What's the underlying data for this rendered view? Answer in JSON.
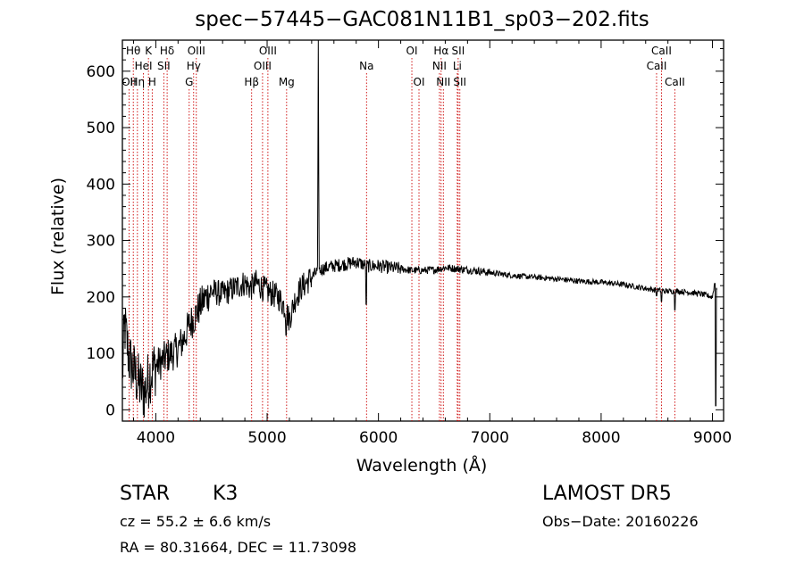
{
  "chart_data": {
    "type": "line",
    "title": "spec−57445−GAC081N11B1_sp03−202.fits",
    "xlabel": "Wavelength (Å)",
    "ylabel": "Flux (relative)",
    "xlim": [
      3700,
      9100
    ],
    "ylim": [
      -20,
      655
    ],
    "xticks": [
      4000,
      5000,
      6000,
      7000,
      8000,
      9000
    ],
    "yticks": [
      0,
      100,
      200,
      300,
      400,
      500,
      600
    ],
    "grid": false,
    "line_color": "#000000",
    "marker_color": "#cc0000",
    "spectrum_anchors": [
      [
        3700,
        60
      ],
      [
        3720,
        150
      ],
      [
        3760,
        90
      ],
      [
        3800,
        70
      ],
      [
        3850,
        45
      ],
      [
        3900,
        30
      ],
      [
        3950,
        65
      ],
      [
        4000,
        78
      ],
      [
        4050,
        85
      ],
      [
        4100,
        95
      ],
      [
        4150,
        100
      ],
      [
        4200,
        108
      ],
      [
        4250,
        125
      ],
      [
        4300,
        150
      ],
      [
        4350,
        165
      ],
      [
        4400,
        185
      ],
      [
        4450,
        200
      ],
      [
        4500,
        210
      ],
      [
        4600,
        205
      ],
      [
        4700,
        215
      ],
      [
        4800,
        225
      ],
      [
        4850,
        215
      ],
      [
        4900,
        225
      ],
      [
        5000,
        210
      ],
      [
        5100,
        200
      ],
      [
        5150,
        185
      ],
      [
        5200,
        160
      ],
      [
        5250,
        195
      ],
      [
        5300,
        215
      ],
      [
        5350,
        225
      ],
      [
        5400,
        235
      ],
      [
        5450,
        245
      ],
      [
        5500,
        250
      ],
      [
        5600,
        255
      ],
      [
        5700,
        258
      ],
      [
        5800,
        262
      ],
      [
        5900,
        255
      ],
      [
        6000,
        255
      ],
      [
        6100,
        252
      ],
      [
        6200,
        250
      ],
      [
        6300,
        247
      ],
      [
        6400,
        247
      ],
      [
        6500,
        248
      ],
      [
        6600,
        252
      ],
      [
        6700,
        250
      ],
      [
        6800,
        248
      ],
      [
        6900,
        246
      ],
      [
        7000,
        243
      ],
      [
        7200,
        238
      ],
      [
        7400,
        235
      ],
      [
        7600,
        232
      ],
      [
        7800,
        228
      ],
      [
        8000,
        226
      ],
      [
        8200,
        222
      ],
      [
        8400,
        215
      ],
      [
        8500,
        212
      ],
      [
        8600,
        210
      ],
      [
        8700,
        210
      ],
      [
        8800,
        208
      ],
      [
        8900,
        205
      ],
      [
        9000,
        200
      ],
      [
        9020,
        225
      ],
      [
        9040,
        215
      ]
    ],
    "spectrum_features": [
      {
        "x": 5460,
        "y": 655,
        "note": "spike"
      },
      {
        "x": 5890,
        "y": 175,
        "note": "dip"
      },
      {
        "x": 5170,
        "y": 120,
        "note": "dip"
      },
      {
        "x": 8498,
        "y": 190,
        "note": "dip"
      },
      {
        "x": 8542,
        "y": 180,
        "note": "dip"
      },
      {
        "x": 8662,
        "y": 165,
        "note": "dip"
      },
      {
        "x": 9030,
        "y": -5,
        "note": "edge drop"
      }
    ],
    "line_markers": [
      {
        "x": 3760,
        "label": "OII",
        "row": 2
      },
      {
        "x": 3798,
        "label": "Hθ",
        "row": 0
      },
      {
        "x": 3835,
        "label": "Hη",
        "row": 2
      },
      {
        "x": 3889,
        "label": "HeI",
        "row": 1
      },
      {
        "x": 3934,
        "label": "K",
        "row": 0
      },
      {
        "x": 3968,
        "label": "H",
        "row": 2
      },
      {
        "x": 4072,
        "label": "SII",
        "row": 1
      },
      {
        "x": 4102,
        "label": "Hδ",
        "row": 0
      },
      {
        "x": 4300,
        "label": "G",
        "row": 2
      },
      {
        "x": 4340,
        "label": "Hγ",
        "row": 1
      },
      {
        "x": 4364,
        "label": "OIII",
        "row": 0
      },
      {
        "x": 4861,
        "label": "Hβ",
        "row": 2
      },
      {
        "x": 4959,
        "label": "OIII",
        "row": 1
      },
      {
        "x": 5007,
        "label": "OIII",
        "row": 0
      },
      {
        "x": 5175,
        "label": "Mg",
        "row": 2
      },
      {
        "x": 5893,
        "label": "Na",
        "row": 1
      },
      {
        "x": 6300,
        "label": "OI",
        "row": 0
      },
      {
        "x": 6364,
        "label": "OI",
        "row": 2
      },
      {
        "x": 6548,
        "label": "NII",
        "row": 1
      },
      {
        "x": 6563,
        "label": "Hα",
        "row": 0
      },
      {
        "x": 6583,
        "label": "NII",
        "row": 2
      },
      {
        "x": 6708,
        "label": "Li",
        "row": 1
      },
      {
        "x": 6716,
        "label": "SII",
        "row": 0
      },
      {
        "x": 6731,
        "label": "SII",
        "row": 2
      },
      {
        "x": 8498,
        "label": "CaII",
        "row": 1
      },
      {
        "x": 8542,
        "label": "CaII",
        "row": 0
      },
      {
        "x": 8662,
        "label": "CaII",
        "row": 2
      }
    ]
  },
  "info": {
    "object_class": "STAR",
    "subclass": "K3",
    "cz": "cz = 55.2 ± 6.6 km/s",
    "coords": "RA =  80.31664, DEC =  11.73098",
    "survey": "LAMOST  DR5",
    "obs_date": "Obs−Date: 20160226"
  }
}
